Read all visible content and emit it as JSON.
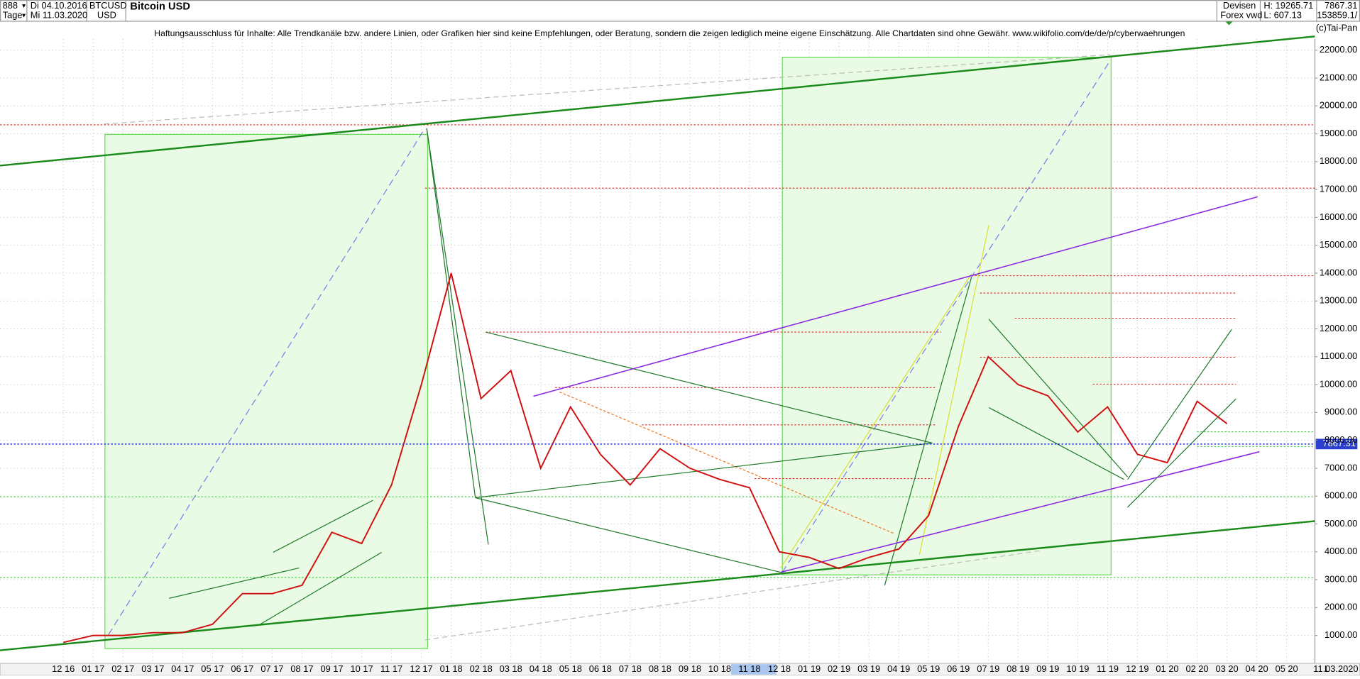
{
  "header": {
    "symbol_code": "888",
    "period": "Tage",
    "start_date": "Di 04.10.2016",
    "end_date": "Mi 11.03.2020",
    "ticker": "BTCUSD",
    "currency": "USD",
    "title": "Bitcoin USD",
    "market": "Devisen",
    "source": "Forex vwd",
    "high": "H: 19265.71",
    "low": "L: 607.13",
    "last": "7867.31",
    "volume": "153859.1/",
    "copyright": "(c)Tai-Pan",
    "disclaimer": "Haftungsausschluss für Inhalte: Alle Trendkanäle bzw. andere Linien, oder Grafiken hier sind keine Empfehlungen, oder Beratung, sondern die zeigen lediglich meine eigene Einschätzung. Alle Chartdaten sind ohne Gewähr.  www.wikifolio.com/de/de/p/cyberwaehrungen"
  },
  "chart_data": {
    "type": "line",
    "categories": [
      "12 16",
      "01 17",
      "02 17",
      "03 17",
      "04 17",
      "05 17",
      "06 17",
      "07 17",
      "08 17",
      "09 17",
      "10 17",
      "11 17",
      "12 17",
      "01 18",
      "02 18",
      "03 18",
      "04 18",
      "05 18",
      "06 18",
      "07 18",
      "08 18",
      "09 18",
      "10 18",
      "11 18",
      "12 18",
      "01 19",
      "02 19",
      "03 19",
      "04 19",
      "05 19",
      "06 19",
      "07 19",
      "08 19",
      "09 19",
      "10 19",
      "11 19",
      "12 19",
      "01 20",
      "02 20",
      "03 20",
      "04 20",
      "05 20"
    ],
    "series": [
      {
        "name": "Bitcoin USD",
        "color": "#d01010",
        "values": [
          750,
          1000,
          1000,
          1100,
          1100,
          1400,
          2500,
          2500,
          2800,
          4700,
          4300,
          6400,
          10000,
          14000,
          9500,
          10500,
          7000,
          9200,
          7500,
          6400,
          7700,
          7000,
          6600,
          6300,
          4000,
          3800,
          3400,
          3800,
          4100,
          5300,
          8500,
          11000,
          10000,
          9600,
          8300,
          9200,
          7500,
          7200,
          9400,
          8600,
          null,
          null
        ]
      }
    ],
    "last_value": 7867.31,
    "ylim": [
      0,
      22400
    ],
    "yticks": [
      {
        "value": 1000,
        "label": "1000.00"
      },
      {
        "value": 2000,
        "label": "2000.00"
      },
      {
        "value": 3000,
        "label": "3000.00"
      },
      {
        "value": 4000,
        "label": "4000.00"
      },
      {
        "value": 5000,
        "label": "5000.00"
      },
      {
        "value": 6000,
        "label": "6000.00"
      },
      {
        "value": 7000,
        "label": "7000.00"
      },
      {
        "value": 8000,
        "label": "8000.00"
      },
      {
        "value": 9000,
        "label": "9000.00"
      },
      {
        "value": 10000,
        "label": "10000.00"
      },
      {
        "value": 11000,
        "label": "11000.00"
      },
      {
        "value": 12000,
        "label": "12000.00"
      },
      {
        "value": 13000,
        "label": "13000.00"
      },
      {
        "value": 14000,
        "label": "14000.00"
      },
      {
        "value": 15000,
        "label": "15000.00"
      },
      {
        "value": 16000,
        "label": "16000.00"
      },
      {
        "value": 17000,
        "label": "17000.00"
      },
      {
        "value": 18000,
        "label": "18000.00"
      },
      {
        "value": 19000,
        "label": "19000.00"
      },
      {
        "value": 20000,
        "label": "20000.00"
      },
      {
        "value": 21000,
        "label": "21000.00"
      },
      {
        "value": 22000,
        "label": "22000.00"
      }
    ],
    "grid": true,
    "footer_mode": "L",
    "footer_date": "11.03.2020"
  }
}
